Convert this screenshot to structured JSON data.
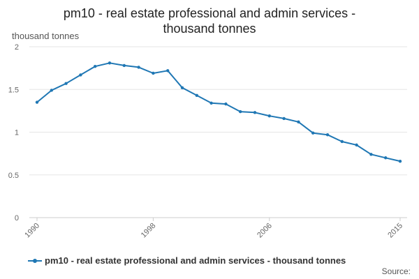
{
  "chart_data": {
    "type": "line",
    "title_lines": [
      "pm10 - real estate professional and admin services -",
      "thousand tonnes"
    ],
    "ylabel": "thousand tonnes",
    "xlabel": "",
    "xlim": [
      1990,
      2015
    ],
    "ylim": [
      0,
      2
    ],
    "x_ticks": [
      1990,
      1998,
      2006,
      2015
    ],
    "y_ticks": [
      0,
      0.5,
      1,
      1.5,
      2
    ],
    "grid": true,
    "legend_position": "bottom",
    "series": [
      {
        "name": "pm10 - real estate professional and admin services - thousand tonnes",
        "color": "#1f77b4",
        "x": [
          1990,
          1991,
          1992,
          1993,
          1994,
          1995,
          1996,
          1997,
          1998,
          1999,
          2000,
          2001,
          2002,
          2003,
          2004,
          2005,
          2006,
          2007,
          2008,
          2009,
          2010,
          2011,
          2012,
          2013,
          2014,
          2015
        ],
        "y": [
          1.35,
          1.49,
          1.57,
          1.67,
          1.77,
          1.81,
          1.78,
          1.76,
          1.69,
          1.72,
          1.52,
          1.43,
          1.34,
          1.33,
          1.24,
          1.23,
          1.19,
          1.16,
          1.12,
          0.99,
          0.97,
          0.89,
          0.85,
          0.74,
          0.7,
          0.66
        ]
      }
    ]
  },
  "footer": {
    "source_label": "Source:"
  }
}
